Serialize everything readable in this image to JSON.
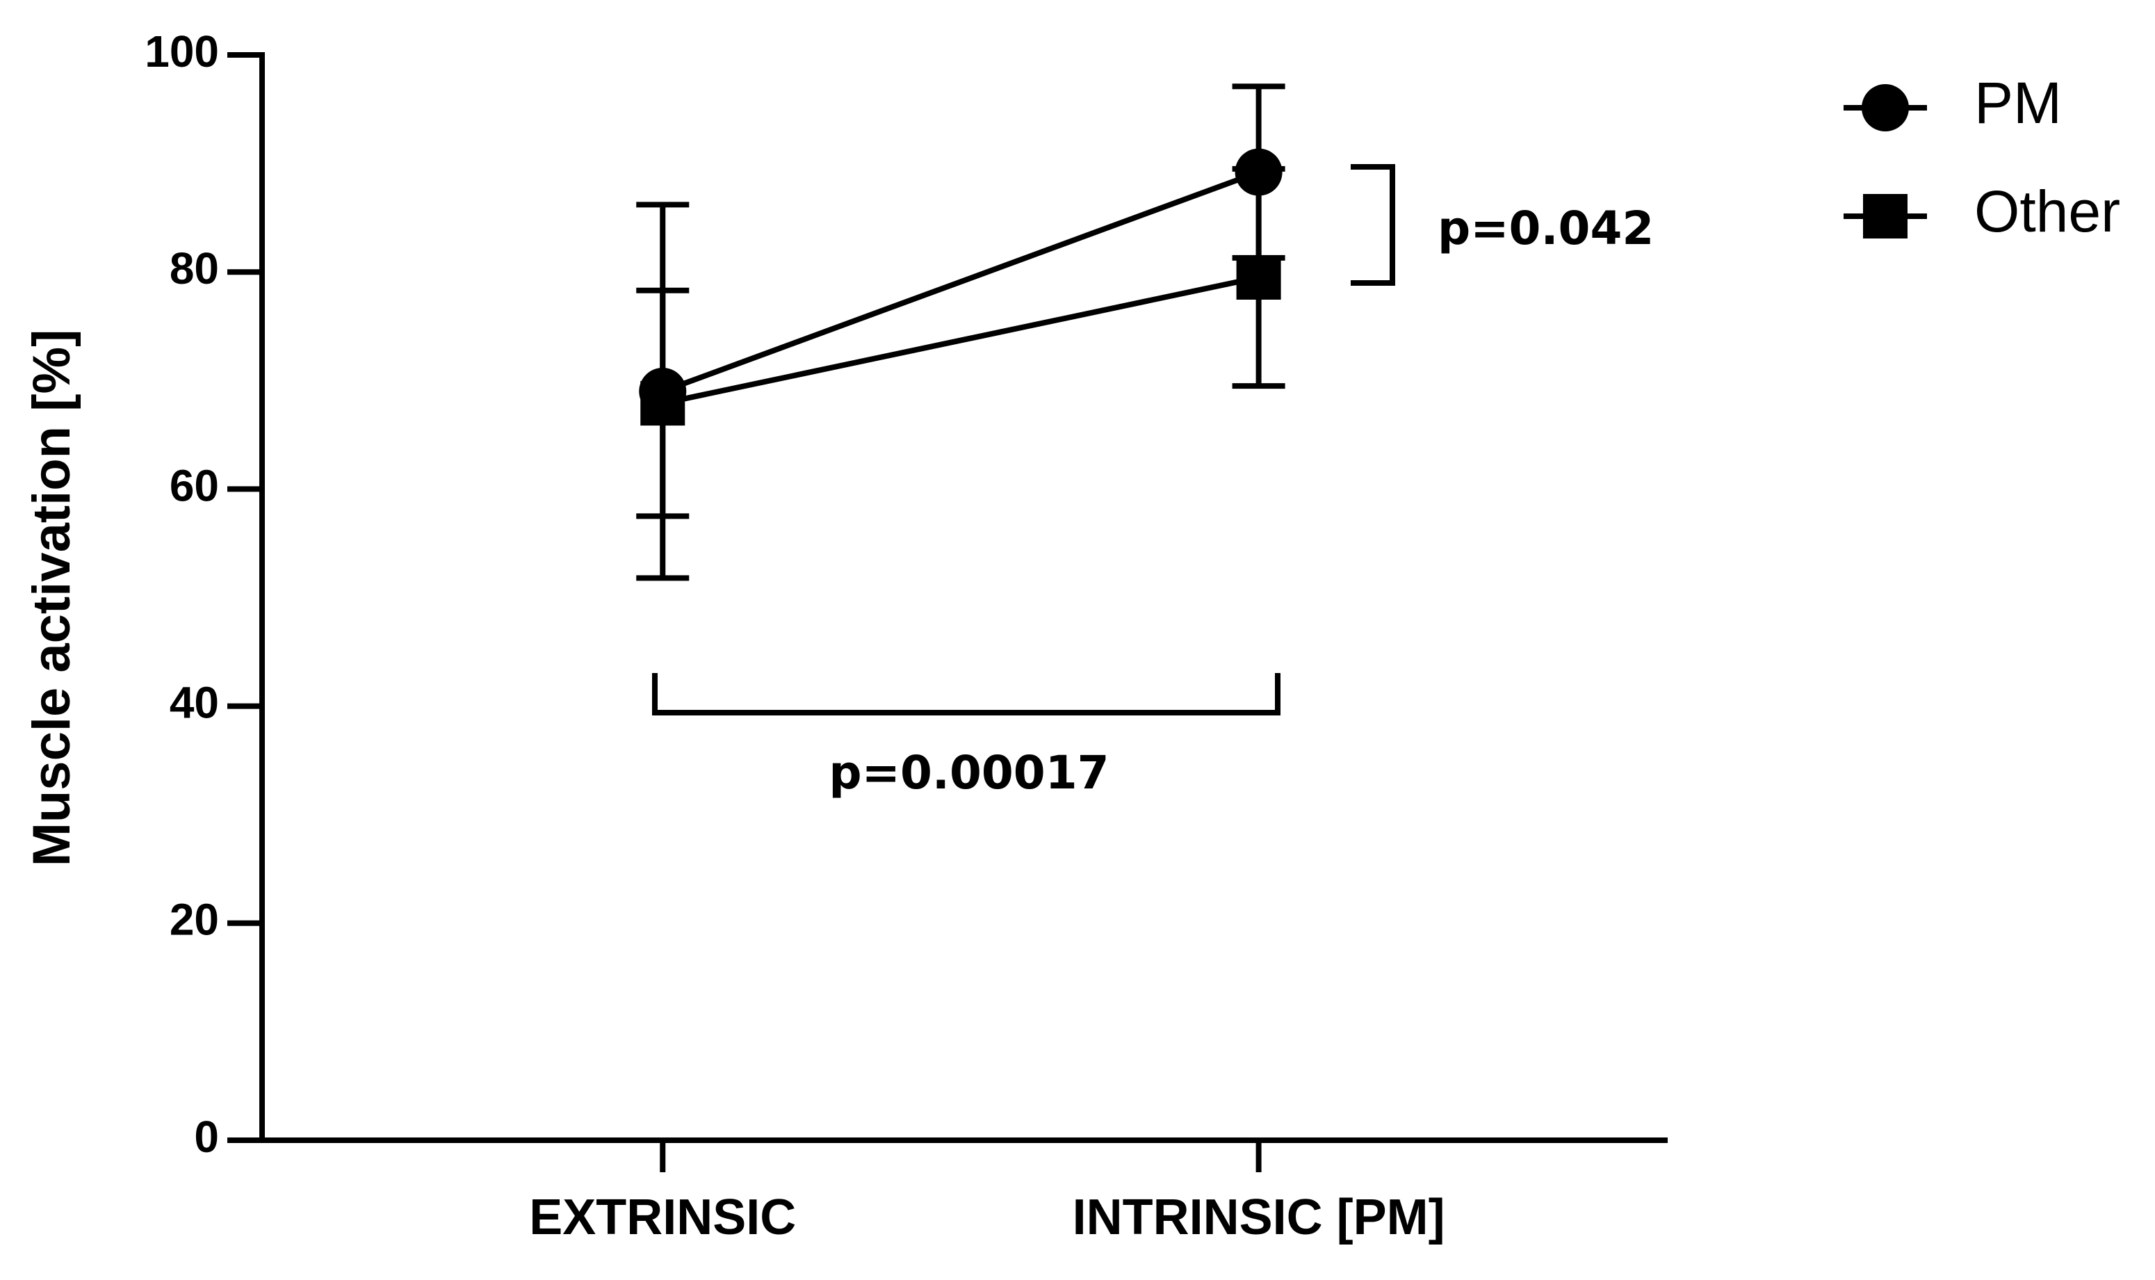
{
  "chart_data": {
    "type": "line",
    "ylabel": "Muscle activation [%]",
    "categories": [
      "EXTRINSIC",
      "INTRINSIC [PM]"
    ],
    "series": [
      {
        "name": "PM",
        "color": "#000000",
        "marker": "circle",
        "values": [
          69,
          89.2
        ],
        "errors": [
          17.2,
          7.9
        ]
      },
      {
        "name": "Other",
        "color": "#000000",
        "marker": "square",
        "values": [
          67.9,
          79.5
        ],
        "errors": [
          10.4,
          10
        ]
      }
    ],
    "ylim": [
      0,
      100
    ],
    "yticks": [
      0,
      20,
      40,
      60,
      80,
      100
    ],
    "legend": "top-right",
    "annotations": [
      {
        "text": "p=0.042"
      },
      {
        "text": "p=0.00017"
      }
    ]
  }
}
